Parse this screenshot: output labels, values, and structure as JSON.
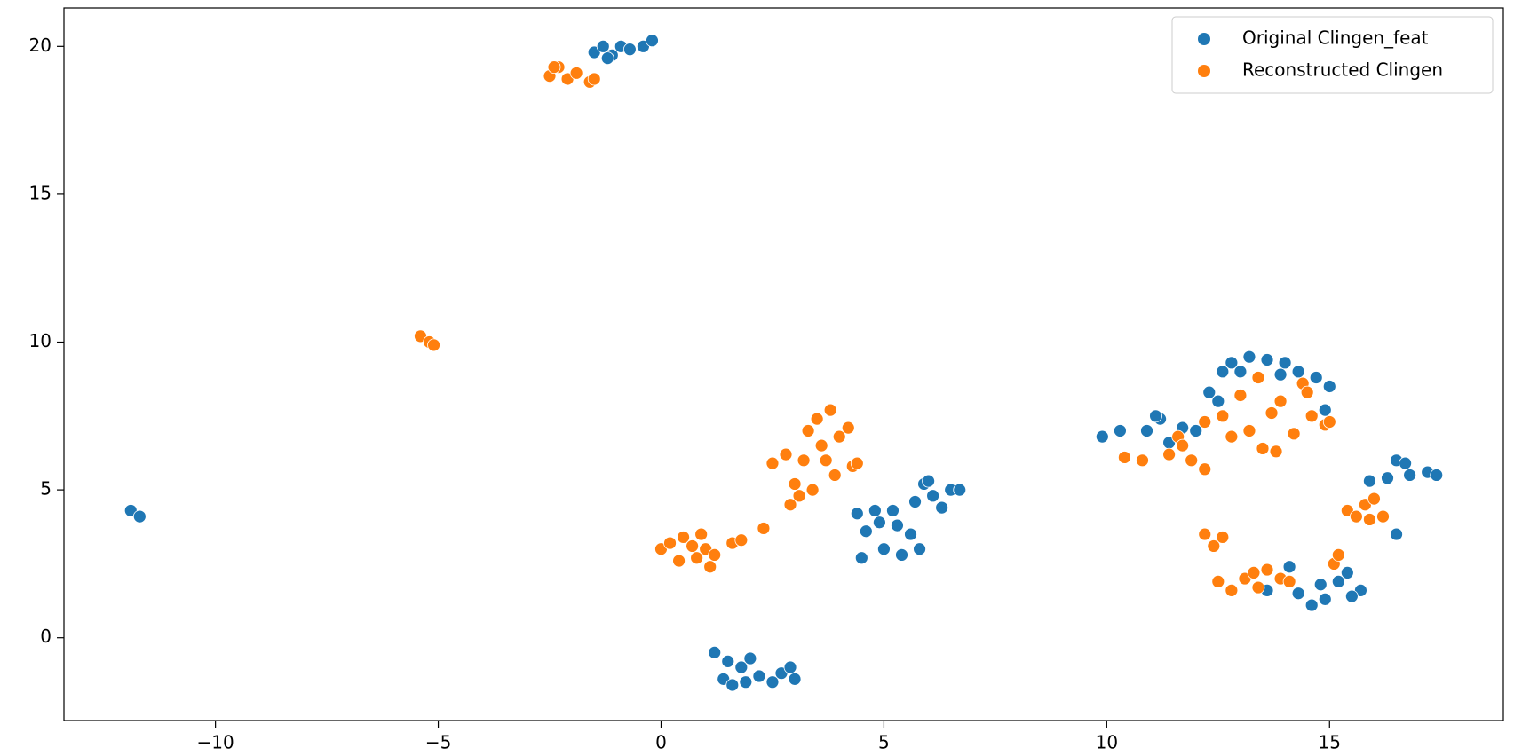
{
  "chart_data": {
    "type": "scatter",
    "xlim": [
      -13.4,
      18.9
    ],
    "ylim": [
      -2.8,
      21.3
    ],
    "xticks": [
      {
        "value": -10,
        "label": "−10"
      },
      {
        "value": -5,
        "label": "−5"
      },
      0,
      5,
      10,
      15
    ],
    "yticks": [
      0,
      5,
      10,
      15,
      20
    ],
    "legend": "upper right",
    "series": [
      {
        "name": "Original Clingen_feat",
        "color": "#1f77b4",
        "x": [
          -1.5,
          -1.3,
          -1.1,
          -0.9,
          -0.7,
          -0.4,
          -0.2,
          -1.2,
          -11.9,
          -11.7,
          1.2,
          1.5,
          1.4,
          1.6,
          1.8,
          2.0,
          2.2,
          2.5,
          2.7,
          2.9,
          3.0,
          1.9,
          4.4,
          4.6,
          4.5,
          4.9,
          5.0,
          5.2,
          5.4,
          5.6,
          5.7,
          5.9,
          6.1,
          6.3,
          6.5,
          6.7,
          5.8,
          5.3,
          6.0,
          4.8,
          12.3,
          12.6,
          12.8,
          13.2,
          13.6,
          14.0,
          14.3,
          14.7,
          15.0,
          12.5,
          14.9,
          13.0,
          13.9,
          9.9,
          10.3,
          10.9,
          11.2,
          11.4,
          11.7,
          12.0,
          11.1,
          15.9,
          16.3,
          16.5,
          16.8,
          17.2,
          17.4,
          16.5,
          16.7,
          13.6,
          14.1,
          14.3,
          14.6,
          14.9,
          15.2,
          15.4,
          15.7,
          15.5,
          14.8
        ],
        "values": [
          19.8,
          20.0,
          19.7,
          20.0,
          19.9,
          20.0,
          20.2,
          19.6,
          4.3,
          4.1,
          -0.5,
          -0.8,
          -1.4,
          -1.6,
          -1.0,
          -0.7,
          -1.3,
          -1.5,
          -1.2,
          -1.0,
          -1.4,
          -1.5,
          4.2,
          3.6,
          2.7,
          3.9,
          3.0,
          4.3,
          2.8,
          3.5,
          4.6,
          5.2,
          4.8,
          4.4,
          5.0,
          5.0,
          3.0,
          3.8,
          5.3,
          4.3,
          8.3,
          9.0,
          9.3,
          9.5,
          9.4,
          9.3,
          9.0,
          8.8,
          8.5,
          8.0,
          7.7,
          9.0,
          8.9,
          6.8,
          7.0,
          7.0,
          7.4,
          6.6,
          7.1,
          7.0,
          7.5,
          5.3,
          5.4,
          6.0,
          5.5,
          5.6,
          5.5,
          3.5,
          5.9,
          1.6,
          2.4,
          1.5,
          1.1,
          1.3,
          1.9,
          2.2,
          1.6,
          1.4,
          1.8
        ]
      },
      {
        "name": "Reconstructed Clingen",
        "color": "#ff7f0e",
        "x": [
          -2.5,
          -2.3,
          -2.1,
          -1.9,
          -1.6,
          -1.5,
          -2.4,
          -5.4,
          -5.2,
          -5.1,
          0.0,
          0.2,
          0.4,
          0.5,
          0.8,
          0.9,
          1.0,
          1.1,
          1.2,
          0.7,
          1.6,
          1.8,
          2.3,
          2.5,
          2.8,
          2.9,
          3.0,
          3.2,
          3.3,
          3.5,
          3.6,
          3.8,
          3.9,
          4.0,
          4.2,
          4.3,
          3.4,
          3.7,
          4.4,
          3.1,
          12.6,
          12.8,
          13.0,
          13.2,
          13.4,
          13.5,
          13.7,
          13.9,
          14.2,
          14.4,
          14.6,
          14.9,
          15.0,
          13.8,
          14.5,
          10.4,
          10.8,
          11.4,
          11.6,
          11.9,
          12.2,
          12.2,
          11.7,
          12.2,
          12.4,
          12.6,
          12.5,
          12.8,
          13.1,
          13.4,
          13.6,
          13.9,
          14.1,
          15.1,
          15.2,
          13.3,
          15.4,
          15.6,
          15.8,
          16.0,
          16.2,
          15.9
        ],
        "values": [
          19.0,
          19.3,
          18.9,
          19.1,
          18.8,
          18.9,
          19.3,
          10.2,
          10.0,
          9.9,
          3.0,
          3.2,
          2.6,
          3.4,
          2.7,
          3.5,
          3.0,
          2.4,
          2.8,
          3.1,
          3.2,
          3.3,
          3.7,
          5.9,
          6.2,
          4.5,
          5.2,
          6.0,
          7.0,
          7.4,
          6.5,
          7.7,
          5.5,
          6.8,
          7.1,
          5.8,
          5.0,
          6.0,
          5.9,
          4.8,
          7.5,
          6.8,
          8.2,
          7.0,
          8.8,
          6.4,
          7.6,
          8.0,
          6.9,
          8.6,
          7.5,
          7.2,
          7.3,
          6.3,
          8.3,
          6.1,
          6.0,
          6.2,
          6.8,
          6.0,
          5.7,
          7.3,
          6.5,
          3.5,
          3.1,
          3.4,
          1.9,
          1.6,
          2.0,
          1.7,
          2.3,
          2.0,
          1.9,
          2.5,
          2.8,
          2.2,
          4.3,
          4.1,
          4.5,
          4.7,
          4.1,
          4.0
        ]
      }
    ]
  }
}
